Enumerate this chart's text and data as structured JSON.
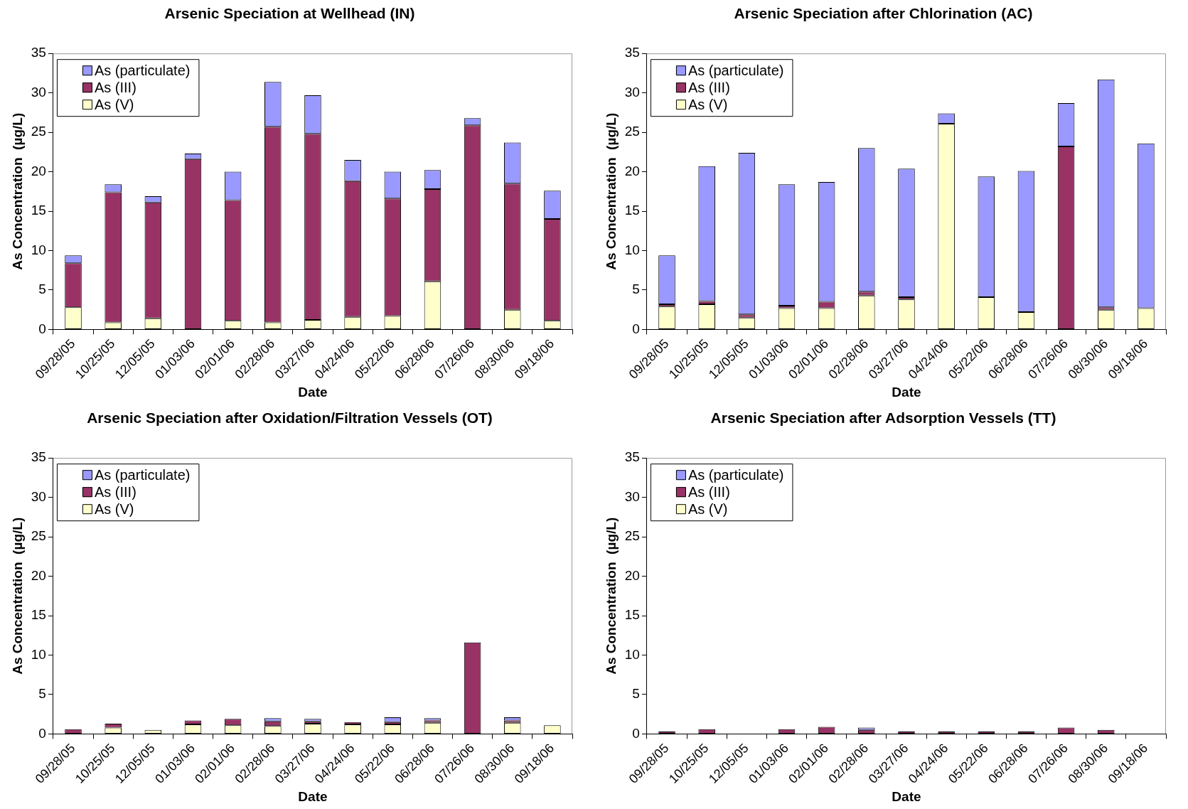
{
  "chart_data": [
    {
      "type": "bar",
      "title": "Arsenic Speciation at Wellhead (IN)",
      "xlabel": "Date",
      "ylabel": "As Concentration  (µg/L)",
      "stacked": true,
      "legend": "top left",
      "grid": false,
      "ylim": [
        0,
        35
      ],
      "yticks": [
        0,
        5,
        10,
        15,
        20,
        25,
        30,
        35
      ],
      "categories": [
        "09/28/05",
        "10/25/05",
        "12/05/05",
        "01/03/06",
        "02/01/06",
        "02/28/06",
        "03/27/06",
        "04/24/06",
        "05/22/06",
        "06/28/06",
        "07/26/06",
        "08/30/06",
        "09/18/06"
      ],
      "series": [
        {
          "name": "As (V)",
          "color": "#ffffcc",
          "values": [
            2.8,
            0.9,
            1.4,
            0,
            1.1,
            0.9,
            1.2,
            1.6,
            1.7,
            6.1,
            0,
            2.5,
            1.1
          ]
        },
        {
          "name": "As (III)",
          "color": "#993366",
          "values": [
            5.6,
            16.5,
            14.7,
            21.6,
            15.3,
            24.8,
            23.6,
            17.2,
            14.9,
            11.7,
            25.9,
            16,
            12.9
          ]
        },
        {
          "name": "As (particulate)",
          "color": "#9999ff",
          "values": [
            1,
            1,
            0.8,
            0.7,
            3.6,
            5.7,
            4.9,
            2.7,
            3.4,
            2.4,
            0.9,
            5.2,
            3.6
          ]
        }
      ]
    },
    {
      "type": "bar",
      "title": "Arsenic Speciation after Chlorination (AC)",
      "xlabel": "Date",
      "ylabel": "As Concentration  (µg/L)",
      "stacked": true,
      "legend": "top left",
      "grid": false,
      "ylim": [
        0,
        35
      ],
      "yticks": [
        0,
        5,
        10,
        15,
        20,
        25,
        30,
        35
      ],
      "categories": [
        "09/28/05",
        "10/25/05",
        "12/05/05",
        "01/03/06",
        "02/01/06",
        "02/28/06",
        "03/27/06",
        "04/24/06",
        "05/22/06",
        "06/28/06",
        "07/26/06",
        "08/30/06",
        "09/18/06"
      ],
      "series": [
        {
          "name": "As (V)",
          "color": "#ffffcc",
          "values": [
            2.9,
            3.2,
            1.5,
            2.7,
            2.7,
            4.3,
            3.8,
            26.1,
            4.1,
            2.2,
            0,
            2.5,
            2.7
          ]
        },
        {
          "name": "As (III)",
          "color": "#993366",
          "values": [
            0.3,
            0.4,
            0.4,
            0.3,
            0.8,
            0.5,
            0.3,
            0,
            0,
            0,
            23.2,
            0.3,
            0
          ]
        },
        {
          "name": "As (particulate)",
          "color": "#9999ff",
          "values": [
            6.2,
            17.1,
            20.5,
            15.4,
            15.2,
            18.2,
            16.3,
            1.3,
            15.3,
            17.9,
            5.5,
            28.9,
            20.9
          ]
        }
      ]
    },
    {
      "type": "bar",
      "title": "Arsenic Speciation after Oxidation/Filtration Vessels (OT)",
      "xlabel": "Date",
      "ylabel": "As Concentration  (µg/L)",
      "stacked": true,
      "legend": "top left",
      "grid": false,
      "ylim": [
        0,
        35
      ],
      "yticks": [
        0,
        5,
        10,
        15,
        20,
        25,
        30,
        35
      ],
      "categories": [
        "09/28/05",
        "10/25/05",
        "12/05/05",
        "01/03/06",
        "02/01/06",
        "02/28/06",
        "03/27/06",
        "04/24/06",
        "05/22/06",
        "06/28/06",
        "07/26/06",
        "08/30/06",
        "09/18/06"
      ],
      "series": [
        {
          "name": "As (V)",
          "color": "#ffffcc",
          "values": [
            0,
            0.8,
            0.5,
            1.2,
            1.1,
            1,
            1.3,
            1.2,
            1.2,
            1.4,
            0,
            1.4,
            1.1
          ]
        },
        {
          "name": "As (III)",
          "color": "#993366",
          "values": [
            0.6,
            0.5,
            0,
            0.5,
            0.8,
            0.6,
            0.3,
            0.3,
            0.3,
            0.3,
            11.6,
            0.3,
            0
          ]
        },
        {
          "name": "As (particulate)",
          "color": "#9999ff",
          "values": [
            0,
            0,
            0,
            0,
            0,
            0.4,
            0.3,
            0,
            0.6,
            0.3,
            0,
            0.4,
            0
          ]
        }
      ]
    },
    {
      "type": "bar",
      "title": "Arsenic Speciation after Adsorption Vessels (TT)",
      "xlabel": "Date",
      "ylabel": "As Concentration  (µg/L)",
      "stacked": true,
      "legend": "top left",
      "grid": false,
      "ylim": [
        0,
        35
      ],
      "yticks": [
        0,
        5,
        10,
        15,
        20,
        25,
        30,
        35
      ],
      "categories": [
        "09/28/05",
        "10/25/05",
        "12/05/05",
        "01/03/06",
        "02/01/06",
        "02/28/06",
        "03/27/06",
        "04/24/06",
        "05/22/06",
        "06/28/06",
        "07/26/06",
        "08/30/06",
        "09/18/06"
      ],
      "series": [
        {
          "name": "As (V)",
          "color": "#ffffcc",
          "values": [
            0,
            0,
            0,
            0,
            0,
            0,
            0,
            0,
            0,
            0,
            0,
            0,
            0
          ]
        },
        {
          "name": "As (III)",
          "color": "#993366",
          "values": [
            0.3,
            0.6,
            0,
            0.6,
            0.9,
            0.5,
            0.3,
            0.3,
            0.3,
            0.3,
            0.8,
            0.5,
            0
          ]
        },
        {
          "name": "As (particulate)",
          "color": "#9999ff",
          "values": [
            0,
            0,
            0,
            0,
            0,
            0.3,
            0,
            0,
            0,
            0,
            0,
            0,
            0
          ]
        }
      ]
    }
  ]
}
